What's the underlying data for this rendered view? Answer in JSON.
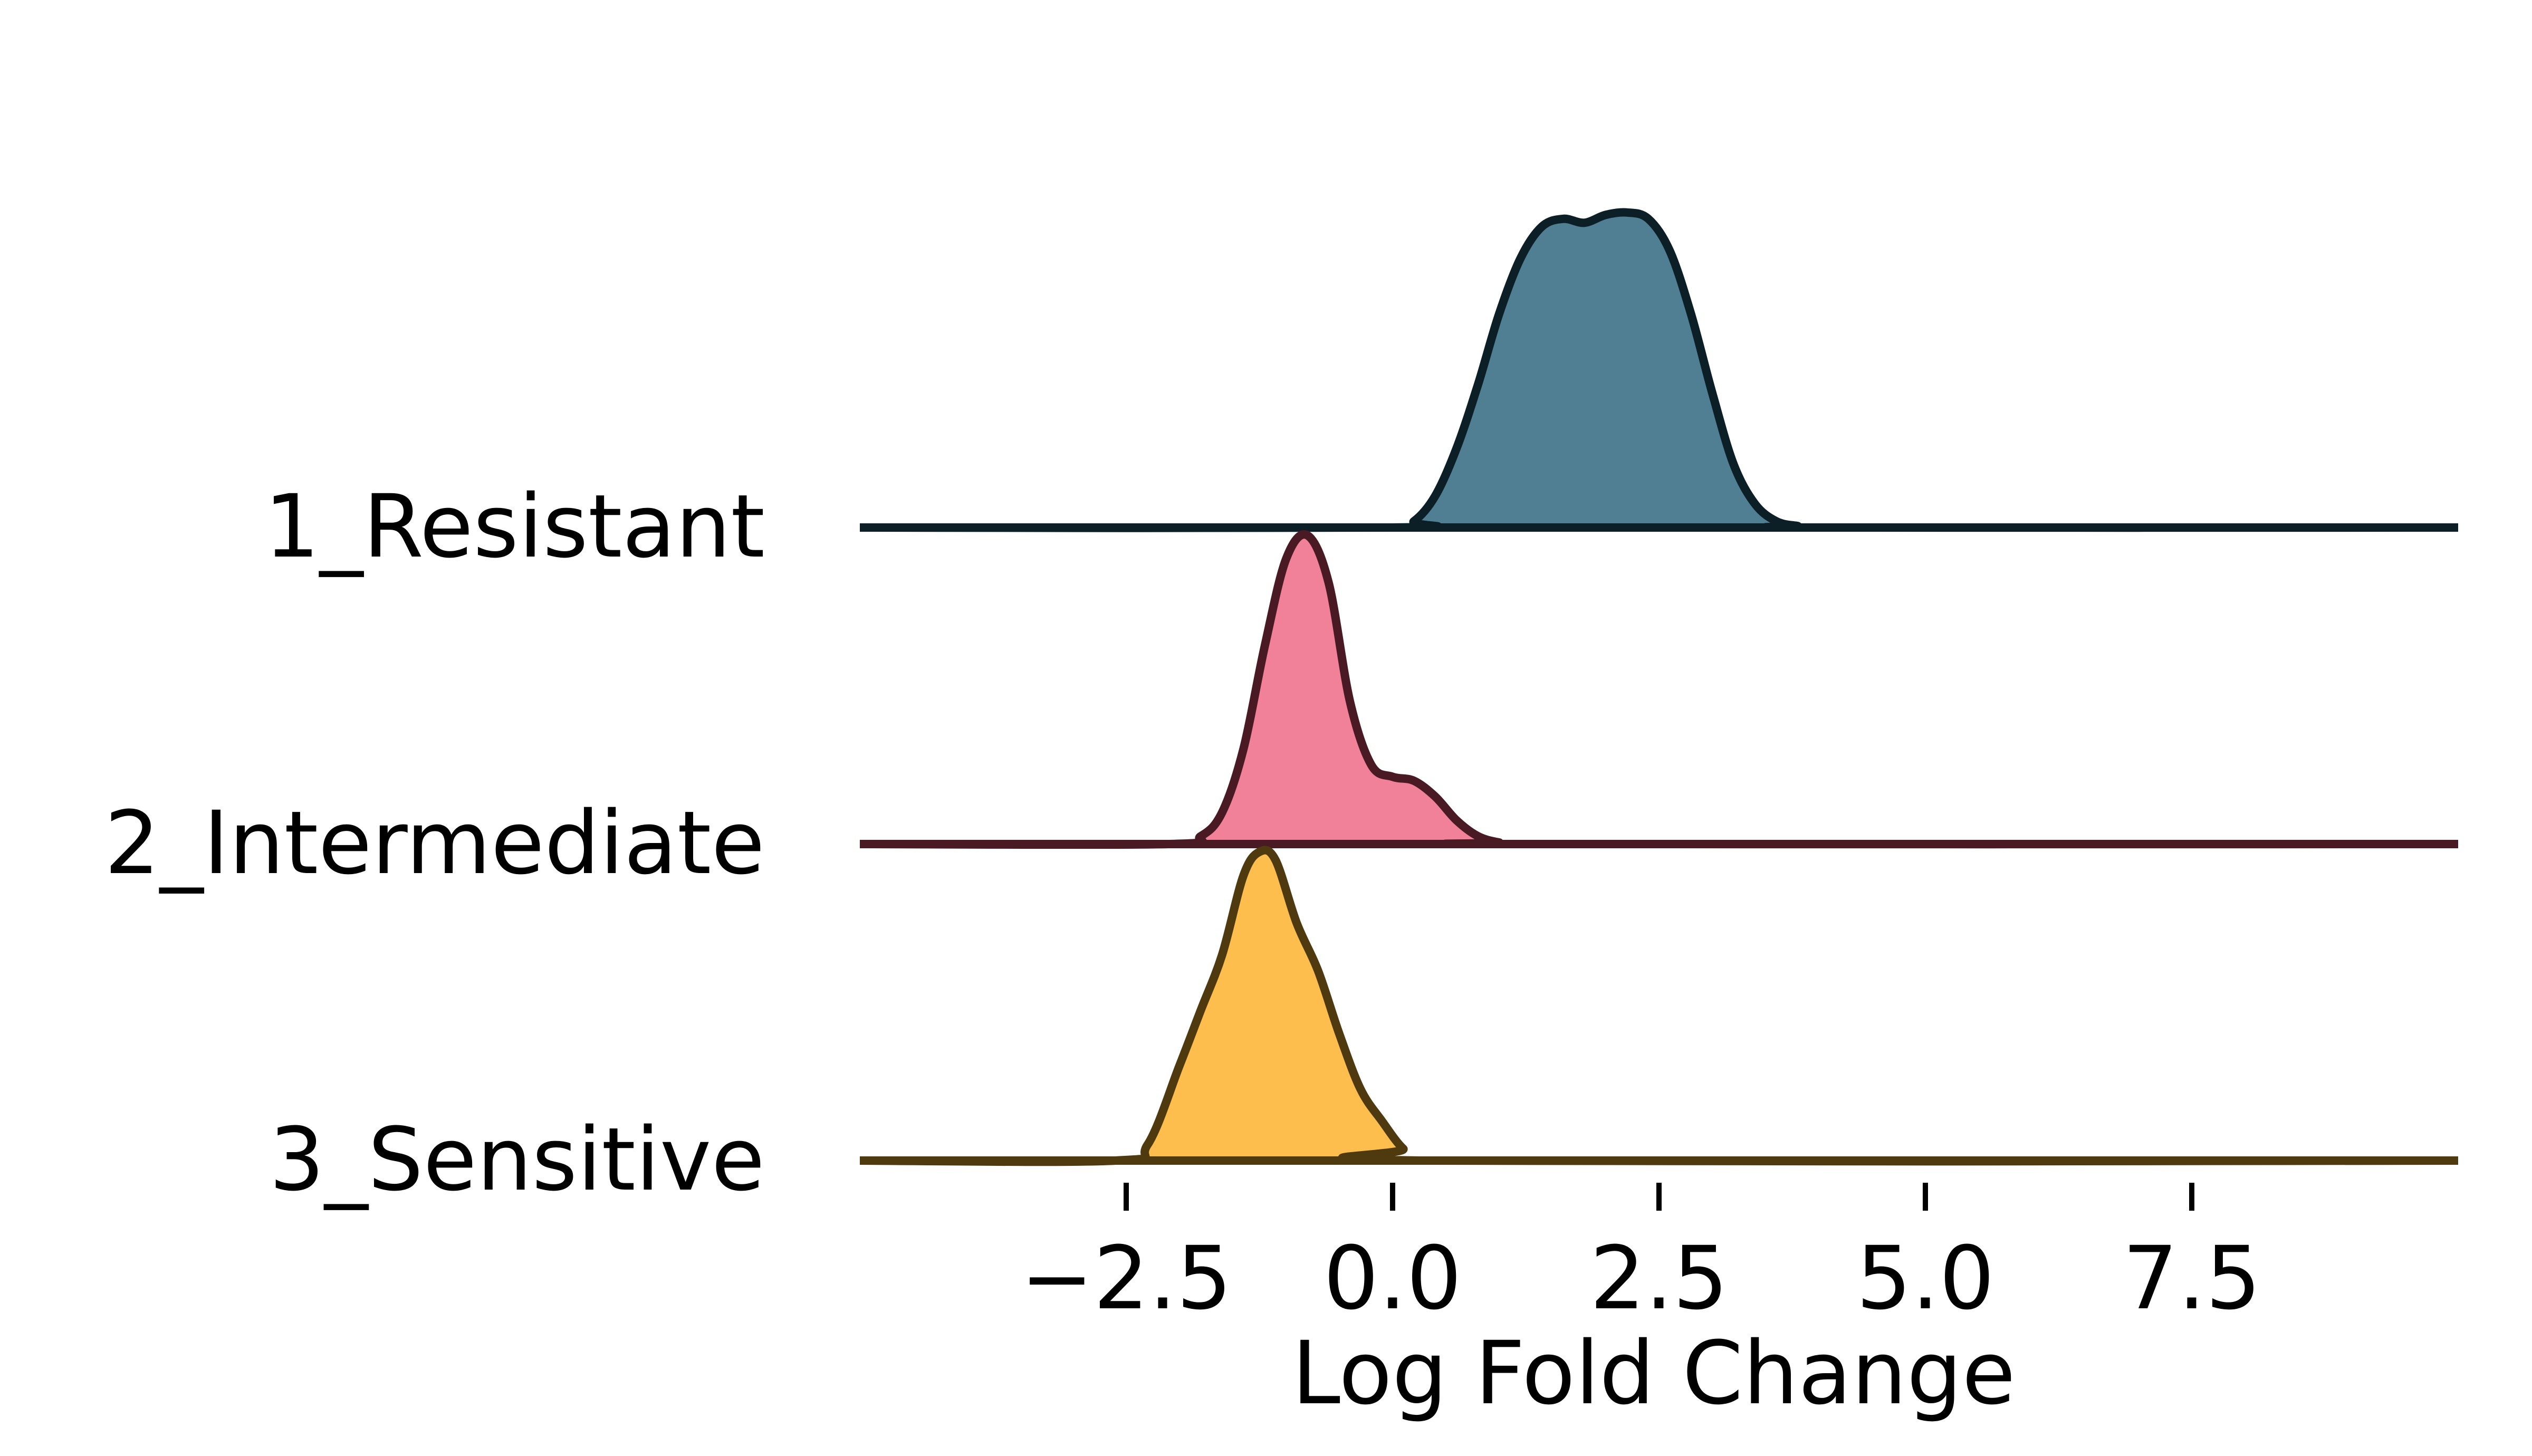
{
  "chart_data": {
    "type": "area",
    "subtype": "ridgeline density",
    "xlabel": "Log Fold Change",
    "ylabel": "",
    "title": "",
    "grid": false,
    "legend": "none",
    "xlim": [
      -5,
      10
    ],
    "x_ticks": [
      -2.5,
      0.0,
      2.5,
      5.0,
      7.5
    ],
    "x_tick_labels": [
      "−2.5",
      "0.0",
      "2.5",
      "5.0",
      "7.5"
    ],
    "series": [
      {
        "name": "1_Resistant",
        "fill_color": "#1f5a73",
        "line_color": "#0d1f26",
        "density_peak": 0.4,
        "x": [
          -5.0,
          0.0,
          0.2,
          0.4,
          0.6,
          0.8,
          1.0,
          1.2,
          1.4,
          1.6,
          1.8,
          2.0,
          2.2,
          2.4,
          2.6,
          2.8,
          3.0,
          3.2,
          3.4,
          3.6,
          3.8,
          4.0,
          10.0
        ],
        "y": [
          0.0,
          0.0,
          0.008,
          0.04,
          0.1,
          0.18,
          0.27,
          0.34,
          0.38,
          0.39,
          0.385,
          0.395,
          0.398,
          0.39,
          0.35,
          0.27,
          0.17,
          0.08,
          0.03,
          0.008,
          0.002,
          0.0,
          0.0
        ]
      },
      {
        "name": "2_Intermediate",
        "fill_color": "#ec5d7c",
        "line_color": "#4a1a24",
        "density_peak": 0.39,
        "x": [
          -5.0,
          -2.1,
          -1.8,
          -1.6,
          -1.4,
          -1.2,
          -1.0,
          -0.8,
          -0.6,
          -0.4,
          -0.2,
          0.0,
          0.2,
          0.4,
          0.6,
          0.8,
          1.0,
          1.2,
          10.0
        ],
        "y": [
          0.0,
          0.0,
          0.01,
          0.04,
          0.12,
          0.25,
          0.36,
          0.39,
          0.33,
          0.18,
          0.1,
          0.085,
          0.08,
          0.06,
          0.03,
          0.01,
          0.002,
          0.0,
          0.0
        ]
      },
      {
        "name": "3_Sensitive",
        "fill_color": "#fcac1b",
        "line_color": "#4f3a0f",
        "density_peak": 0.39,
        "x": [
          -5.0,
          -2.6,
          -2.3,
          -2.0,
          -1.8,
          -1.6,
          -1.4,
          -1.25,
          -1.1,
          -0.9,
          -0.7,
          -0.5,
          -0.3,
          -0.1,
          0.1,
          0.3,
          10.0
        ],
        "y": [
          0.0,
          0.0,
          0.02,
          0.12,
          0.19,
          0.26,
          0.36,
          0.39,
          0.38,
          0.3,
          0.24,
          0.16,
          0.09,
          0.05,
          0.015,
          0.0,
          0.0
        ]
      }
    ]
  }
}
